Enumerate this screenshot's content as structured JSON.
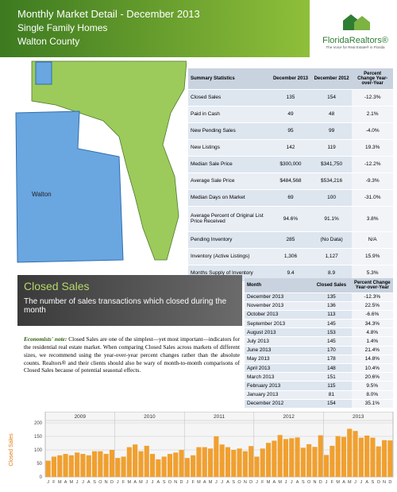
{
  "header": {
    "title": "Monthly Market Detail - December 2013",
    "subtitle": "Single Family Homes",
    "area": "Walton County"
  },
  "logo": {
    "name": "FloridaRealtors®",
    "tagline": "The Voice for Real Estate® in Florida"
  },
  "map": {
    "label": "Walton"
  },
  "summary_table": {
    "headers": [
      "Summary Statistics",
      "December 2013",
      "December 2012",
      "Percent Change Year-over-Year"
    ],
    "rows": [
      [
        "Closed Sales",
        "135",
        "154",
        "-12.3%"
      ],
      [
        "Paid in Cash",
        "49",
        "48",
        "2.1%"
      ],
      [
        "New Pending Sales",
        "95",
        "99",
        "-4.0%"
      ],
      [
        "New Listings",
        "142",
        "119",
        "19.3%"
      ],
      [
        "Median Sale Price",
        "$300,000",
        "$341,750",
        "-12.2%"
      ],
      [
        "Average Sale Price",
        "$484,568",
        "$534,216",
        "-9.3%"
      ],
      [
        "Median Days on Market",
        "69",
        "100",
        "-31.0%"
      ],
      [
        "Average Percent of Original List Price Received",
        "94.6%",
        "91.1%",
        "3.8%"
      ],
      [
        "Pending Inventory",
        "285",
        "(No Data)",
        "N/A"
      ],
      [
        "Inventory (Active Listings)",
        "1,306",
        "1,127",
        "15.9%"
      ],
      [
        "Months Supply of Inventory",
        "9.4",
        "8.9",
        "5.3%"
      ]
    ]
  },
  "section": {
    "title": "Closed Sales",
    "subtitle": "The number of sales transactions which closed during the month",
    "note_label": "Economists' note:",
    "note": "Closed Sales are one of the simplest—yet most important—indicators for the residential real estate market. When comparing Closed Sales across markets of different sizes, we recommend using the year-over-year percent changes rather than the absolute counts. Realtors® and their clients should also be wary of month-to-month comparisons of Closed Sales because of potential seasonal effects."
  },
  "month_table": {
    "headers": [
      "Month",
      "Closed Sales",
      "Percent Change Year-over-Year"
    ],
    "rows": [
      [
        "December 2013",
        "135",
        "-12.3%"
      ],
      [
        "November 2013",
        "136",
        "22.5%"
      ],
      [
        "October 2013",
        "113",
        "-6.6%"
      ],
      [
        "September 2013",
        "145",
        "34.3%"
      ],
      [
        "August 2013",
        "153",
        "4.8%"
      ],
      [
        "July 2013",
        "145",
        "1.4%"
      ],
      [
        "June 2013",
        "170",
        "21.4%"
      ],
      [
        "May 2013",
        "178",
        "14.8%"
      ],
      [
        "April 2013",
        "148",
        "10.4%"
      ],
      [
        "March 2013",
        "151",
        "20.6%"
      ],
      [
        "February 2013",
        "115",
        "9.5%"
      ],
      [
        "January 2013",
        "81",
        "8.0%"
      ],
      [
        "December 2012",
        "154",
        "35.1%"
      ]
    ]
  },
  "chart": {
    "type": "bar",
    "y_label": "Closed Sales",
    "color": "#f0a030",
    "years": [
      "2009",
      "2010",
      "2011",
      "2012",
      "2013"
    ],
    "month_labels": [
      "J",
      "F",
      "M",
      "A",
      "M",
      "J",
      "J",
      "A",
      "S",
      "O",
      "N",
      "D"
    ],
    "values": [
      60,
      75,
      80,
      85,
      80,
      90,
      85,
      80,
      95,
      95,
      85,
      100,
      70,
      75,
      110,
      120,
      95,
      115,
      85,
      65,
      75,
      85,
      90,
      100,
      70,
      80,
      110,
      110,
      105,
      150,
      120,
      110,
      100,
      105,
      95,
      114,
      75,
      105,
      126,
      134,
      155,
      140,
      143,
      146,
      108,
      121,
      111,
      154,
      81,
      115,
      151,
      148,
      178,
      170,
      145,
      153,
      145,
      113,
      136,
      135
    ],
    "ylim": [
      0,
      200
    ],
    "yticks": [
      0,
      50,
      100,
      150,
      200
    ]
  }
}
